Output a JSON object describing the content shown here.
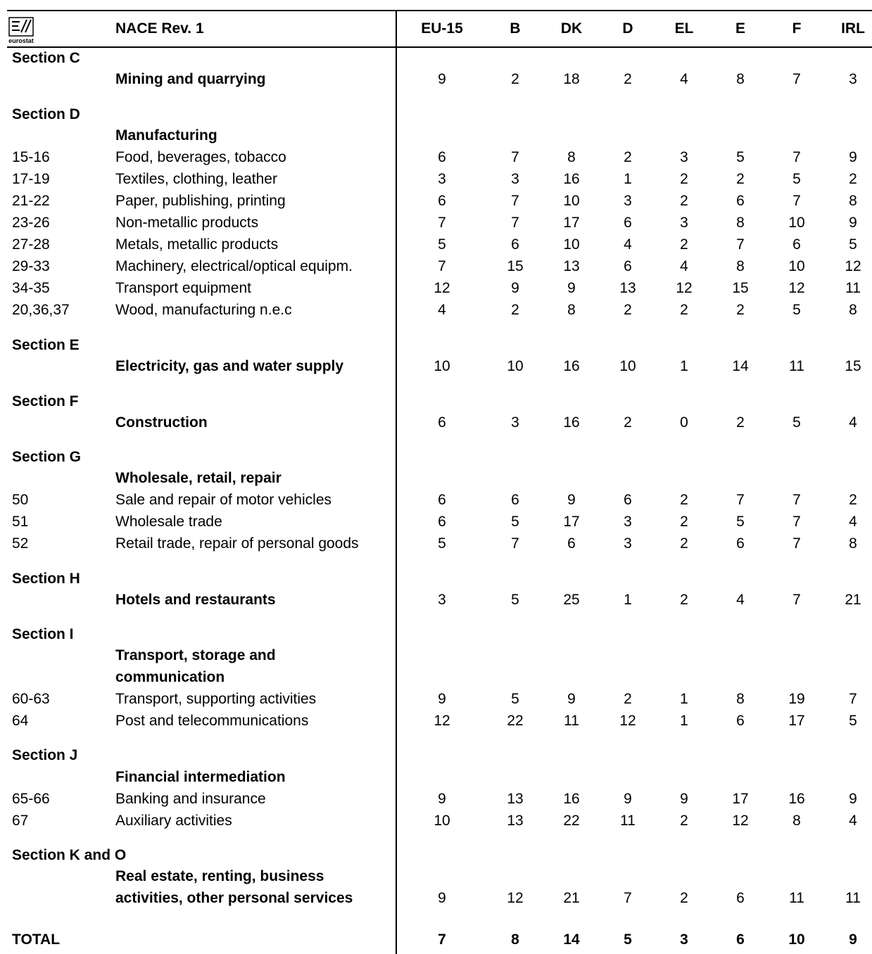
{
  "header": {
    "logo_text": "eurostat",
    "nace_label": "NACE Rev. 1",
    "columns": [
      "EU-15",
      "B",
      "DK",
      "D",
      "EL",
      "E",
      "F",
      "IRL"
    ]
  },
  "rows": [
    {
      "type": "section",
      "code": "Section C"
    },
    {
      "type": "main",
      "label": "Mining and quarrying",
      "values": [
        "9",
        "2",
        "18",
        "2",
        "4",
        "8",
        "7",
        "3"
      ]
    },
    {
      "type": "section",
      "code": "Section D"
    },
    {
      "type": "heading",
      "label": "Manufacturing"
    },
    {
      "type": "sub",
      "code": "15-16",
      "label": "Food, beverages, tobacco",
      "values": [
        "6",
        "7",
        "8",
        "2",
        "3",
        "5",
        "7",
        "9"
      ]
    },
    {
      "type": "sub",
      "code": "17-19",
      "label": "Textiles, clothing, leather",
      "values": [
        "3",
        "3",
        "16",
        "1",
        "2",
        "2",
        "5",
        "2"
      ]
    },
    {
      "type": "sub",
      "code": "21-22",
      "label": "Paper, publishing, printing",
      "values": [
        "6",
        "7",
        "10",
        "3",
        "2",
        "6",
        "7",
        "8"
      ]
    },
    {
      "type": "sub",
      "code": "23-26",
      "label": "Non-metallic products",
      "values": [
        "7",
        "7",
        "17",
        "6",
        "3",
        "8",
        "10",
        "9"
      ]
    },
    {
      "type": "sub",
      "code": "27-28",
      "label": "Metals, metallic products",
      "values": [
        "5",
        "6",
        "10",
        "4",
        "2",
        "7",
        "6",
        "5"
      ]
    },
    {
      "type": "sub",
      "code": "29-33",
      "label": "Machinery, electrical/optical equipm.",
      "values": [
        "7",
        "15",
        "13",
        "6",
        "4",
        "8",
        "10",
        "12"
      ]
    },
    {
      "type": "sub",
      "code": "34-35",
      "label": "Transport equipment",
      "values": [
        "12",
        "9",
        "9",
        "13",
        "12",
        "15",
        "12",
        "11"
      ]
    },
    {
      "type": "sub",
      "code": "20,36,37",
      "label": "Wood, manufacturing n.e.c",
      "values": [
        "4",
        "2",
        "8",
        "2",
        "2",
        "2",
        "5",
        "8"
      ]
    },
    {
      "type": "section",
      "code": "Section E"
    },
    {
      "type": "main",
      "label": "Electricity, gas and water supply",
      "values": [
        "10",
        "10",
        "16",
        "10",
        "1",
        "14",
        "11",
        "15"
      ]
    },
    {
      "type": "section",
      "code": "Section F"
    },
    {
      "type": "main",
      "label": "Construction",
      "values": [
        "6",
        "3",
        "16",
        "2",
        "0",
        "2",
        "5",
        "4"
      ]
    },
    {
      "type": "section",
      "code": "Section G"
    },
    {
      "type": "heading",
      "label": "Wholesale, retail, repair"
    },
    {
      "type": "sub",
      "code": "50",
      "label": "Sale and repair of motor vehicles",
      "values": [
        "6",
        "6",
        "9",
        "6",
        "2",
        "7",
        "7",
        "2"
      ]
    },
    {
      "type": "sub",
      "code": "51",
      "label": "Wholesale trade",
      "values": [
        "6",
        "5",
        "17",
        "3",
        "2",
        "5",
        "7",
        "4"
      ]
    },
    {
      "type": "sub",
      "code": "52",
      "label": "Retail trade, repair of personal goods",
      "values": [
        "5",
        "7",
        "6",
        "3",
        "2",
        "6",
        "7",
        "8"
      ]
    },
    {
      "type": "section",
      "code": "Section H"
    },
    {
      "type": "main",
      "label": "Hotels and restaurants",
      "values": [
        "3",
        "5",
        "25",
        "1",
        "2",
        "4",
        "7",
        "21"
      ]
    },
    {
      "type": "section",
      "code": "Section I"
    },
    {
      "type": "heading",
      "label": "Transport, storage and"
    },
    {
      "type": "heading",
      "label": "communication"
    },
    {
      "type": "sub",
      "code": "60-63",
      "label": "Transport, supporting activities",
      "values": [
        "9",
        "5",
        "9",
        "2",
        "1",
        "8",
        "19",
        "7"
      ]
    },
    {
      "type": "sub",
      "code": "64",
      "label": "Post and telecommunications",
      "values": [
        "12",
        "22",
        "11",
        "12",
        "1",
        "6",
        "17",
        "5"
      ]
    },
    {
      "type": "section",
      "code": "Section J"
    },
    {
      "type": "heading",
      "label": "Financial intermediation"
    },
    {
      "type": "sub",
      "code": "65-66",
      "label": "Banking and insurance",
      "values": [
        "9",
        "13",
        "16",
        "9",
        "9",
        "17",
        "16",
        "9"
      ]
    },
    {
      "type": "sub",
      "code": "67",
      "label": "Auxiliary activities",
      "values": [
        "10",
        "13",
        "22",
        "11",
        "2",
        "12",
        "8",
        "4"
      ]
    },
    {
      "type": "section",
      "code": "Section K and O"
    },
    {
      "type": "heading",
      "label": "Real estate, renting, business"
    },
    {
      "type": "main",
      "label": "activities, other personal services",
      "values": [
        "9",
        "12",
        "21",
        "7",
        "2",
        "6",
        "11",
        "11"
      ]
    },
    {
      "type": "total",
      "code": "TOTAL",
      "values": [
        "7",
        "8",
        "14",
        "5",
        "3",
        "6",
        "10",
        "9"
      ]
    }
  ]
}
